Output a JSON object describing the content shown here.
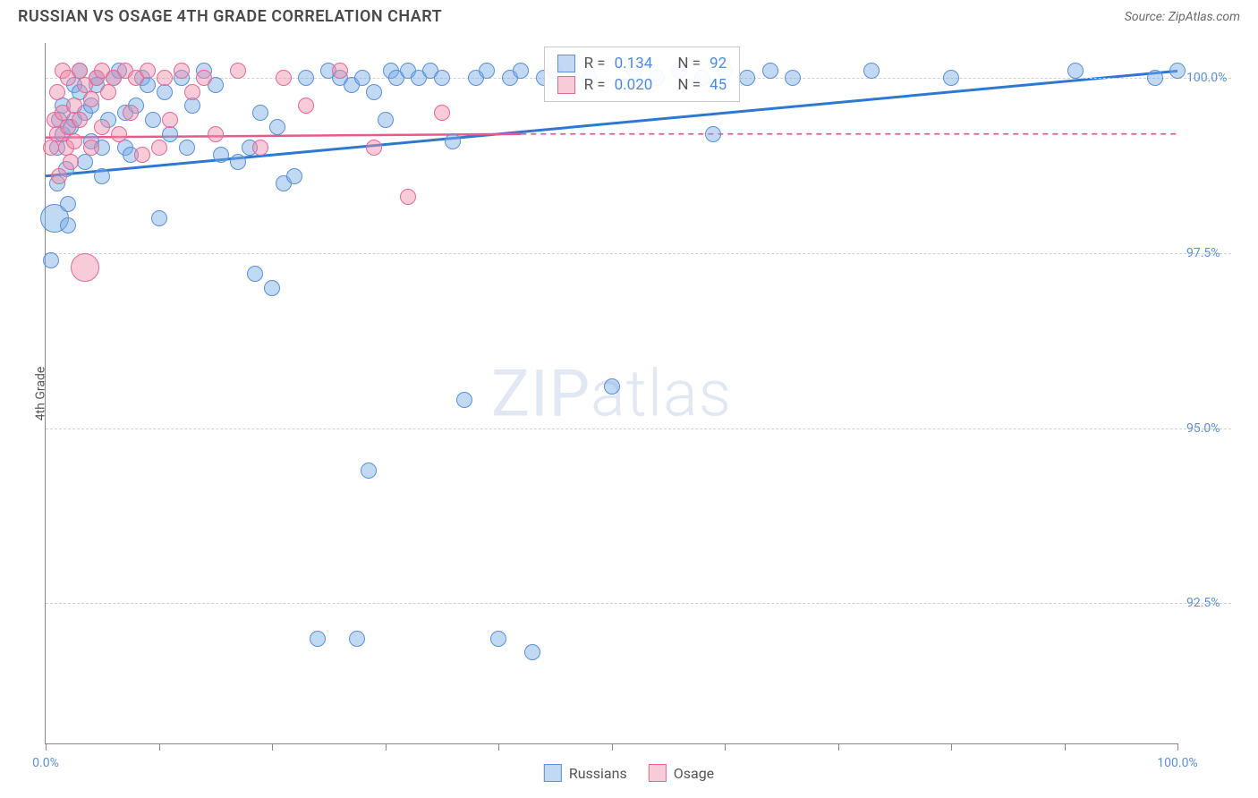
{
  "title": "RUSSIAN VS OSAGE 4TH GRADE CORRELATION CHART",
  "source_label": "Source: ZipAtlas.com",
  "watermark_zip": "ZIP",
  "watermark_atlas": "atlas",
  "y_axis_title": "4th Grade",
  "chart": {
    "type": "scatter",
    "background_color": "#ffffff",
    "grid_color": "#d0d0d0",
    "axis_color": "#888888",
    "xlim": [
      0,
      100
    ],
    "x_ticks": [
      0,
      10,
      20,
      30,
      40,
      50,
      60,
      70,
      80,
      90,
      100
    ],
    "x_tick_labels": {
      "0": "0.0%",
      "100": "100.0%"
    },
    "ylim": [
      90.5,
      100.5
    ],
    "y_ticks": [
      92.5,
      95.0,
      97.5,
      100.0
    ],
    "y_tick_labels": [
      "92.5%",
      "95.0%",
      "97.5%",
      "100.0%"
    ],
    "marker_radius": 9,
    "marker_radius_big": 16,
    "series": [
      {
        "name": "Russians",
        "fill": "rgba(120,170,230,0.45)",
        "stroke": "#5b8fd6",
        "trend": {
          "x1": 0,
          "y1": 98.6,
          "x2": 100,
          "y2": 100.1,
          "color": "#2e78d2",
          "width": 3,
          "dash_after_x": 100
        },
        "stats": {
          "r": "0.134",
          "n": "92"
        },
        "points": [
          [
            0.5,
            97.4
          ],
          [
            0.8,
            98.0,
            16
          ],
          [
            1.0,
            98.5
          ],
          [
            1.0,
            99.0
          ],
          [
            1.2,
            99.4
          ],
          [
            1.5,
            99.2
          ],
          [
            1.5,
            99.6
          ],
          [
            1.8,
            98.7
          ],
          [
            2.0,
            98.2
          ],
          [
            2.0,
            97.9
          ],
          [
            2.2,
            99.3
          ],
          [
            2.5,
            99.9
          ],
          [
            2.5,
            99.4
          ],
          [
            3.0,
            99.8
          ],
          [
            3.0,
            100.1
          ],
          [
            3.5,
            99.5
          ],
          [
            3.5,
            98.8
          ],
          [
            4.0,
            99.1
          ],
          [
            4.0,
            99.6
          ],
          [
            4.5,
            100.0
          ],
          [
            4.5,
            99.9
          ],
          [
            5.0,
            98.6
          ],
          [
            5.0,
            99.0
          ],
          [
            5.5,
            99.4
          ],
          [
            6.0,
            100.0
          ],
          [
            6.5,
            100.1
          ],
          [
            7.0,
            99.5
          ],
          [
            7.0,
            99.0
          ],
          [
            7.5,
            98.9
          ],
          [
            8.0,
            99.6
          ],
          [
            8.5,
            100.0
          ],
          [
            9.0,
            99.9
          ],
          [
            9.5,
            99.4
          ],
          [
            10.0,
            98.0
          ],
          [
            10.5,
            99.8
          ],
          [
            11.0,
            99.2
          ],
          [
            12.0,
            100.0
          ],
          [
            12.5,
            99.0
          ],
          [
            13.0,
            99.6
          ],
          [
            14.0,
            100.1
          ],
          [
            15.0,
            99.9
          ],
          [
            15.5,
            98.9
          ],
          [
            17.0,
            98.8
          ],
          [
            18.0,
            99.0
          ],
          [
            18.5,
            97.2
          ],
          [
            19.0,
            99.5
          ],
          [
            20.0,
            97.0
          ],
          [
            20.5,
            99.3
          ],
          [
            21.0,
            98.5
          ],
          [
            22.0,
            98.6
          ],
          [
            23.0,
            100.0
          ],
          [
            24.0,
            92.0
          ],
          [
            25.0,
            100.1
          ],
          [
            26.0,
            100.0
          ],
          [
            27.0,
            99.9
          ],
          [
            27.5,
            92.0
          ],
          [
            28.0,
            100.0
          ],
          [
            28.5,
            94.4
          ],
          [
            29.0,
            99.8
          ],
          [
            30.0,
            99.4
          ],
          [
            30.5,
            100.1
          ],
          [
            31.0,
            100.0
          ],
          [
            32.0,
            100.1
          ],
          [
            33.0,
            100.0
          ],
          [
            34.0,
            100.1
          ],
          [
            35.0,
            100.0
          ],
          [
            36.0,
            99.1
          ],
          [
            37.0,
            95.4
          ],
          [
            38.0,
            100.0
          ],
          [
            39.0,
            100.1
          ],
          [
            40.0,
            92.0
          ],
          [
            41.0,
            100.0
          ],
          [
            42.0,
            100.1
          ],
          [
            43.0,
            91.8
          ],
          [
            44.0,
            100.0
          ],
          [
            45.0,
            100.1
          ],
          [
            48.0,
            100.0
          ],
          [
            50.0,
            95.6
          ],
          [
            52.0,
            100.1
          ],
          [
            54.0,
            100.0
          ],
          [
            56.0,
            100.1
          ],
          [
            58.0,
            100.0
          ],
          [
            59.0,
            99.2
          ],
          [
            60.0,
            100.1
          ],
          [
            62.0,
            100.0
          ],
          [
            64.0,
            100.1
          ],
          [
            66.0,
            100.0
          ],
          [
            73.0,
            100.1
          ],
          [
            80.0,
            100.0
          ],
          [
            91.0,
            100.1
          ],
          [
            98.0,
            100.0
          ],
          [
            100.0,
            100.1
          ]
        ]
      },
      {
        "name": "Osage",
        "fill": "rgba(240,140,170,0.45)",
        "stroke": "#e06a95",
        "trend": {
          "x1": 0,
          "y1": 99.15,
          "x2": 42,
          "y2": 99.2,
          "dash_to_x": 100,
          "dash_y": 99.2,
          "color": "#e85a8c",
          "width": 2.5
        },
        "stats": {
          "r": "0.020",
          "n": "45"
        },
        "points": [
          [
            0.5,
            99.0
          ],
          [
            0.8,
            99.4
          ],
          [
            1.0,
            99.8
          ],
          [
            1.0,
            99.2
          ],
          [
            1.2,
            98.6
          ],
          [
            1.5,
            99.5
          ],
          [
            1.5,
            100.1
          ],
          [
            1.8,
            99.0
          ],
          [
            2.0,
            99.3
          ],
          [
            2.0,
            100.0
          ],
          [
            2.2,
            98.8
          ],
          [
            2.5,
            99.6
          ],
          [
            2.5,
            99.1
          ],
          [
            3.0,
            99.4
          ],
          [
            3.0,
            100.1
          ],
          [
            3.5,
            99.9
          ],
          [
            3.5,
            97.3,
            16
          ],
          [
            4.0,
            99.0
          ],
          [
            4.0,
            99.7
          ],
          [
            4.5,
            100.0
          ],
          [
            5.0,
            100.1
          ],
          [
            5.0,
            99.3
          ],
          [
            5.5,
            99.8
          ],
          [
            6.0,
            100.0
          ],
          [
            6.5,
            99.2
          ],
          [
            7.0,
            100.1
          ],
          [
            7.5,
            99.5
          ],
          [
            8.0,
            100.0
          ],
          [
            8.5,
            98.9
          ],
          [
            9.0,
            100.1
          ],
          [
            10.0,
            99.0
          ],
          [
            10.5,
            100.0
          ],
          [
            11.0,
            99.4
          ],
          [
            12.0,
            100.1
          ],
          [
            13.0,
            99.8
          ],
          [
            14.0,
            100.0
          ],
          [
            15.0,
            99.2
          ],
          [
            17.0,
            100.1
          ],
          [
            19.0,
            99.0
          ],
          [
            21.0,
            100.0
          ],
          [
            23.0,
            99.6
          ],
          [
            26.0,
            100.1
          ],
          [
            29.0,
            99.0
          ],
          [
            32.0,
            98.3
          ],
          [
            35.0,
            99.5
          ]
        ]
      }
    ]
  },
  "stats_box": {
    "r_label": "R =",
    "n_label": "N ="
  },
  "legend": {
    "russians": "Russians",
    "osage": "Osage"
  }
}
